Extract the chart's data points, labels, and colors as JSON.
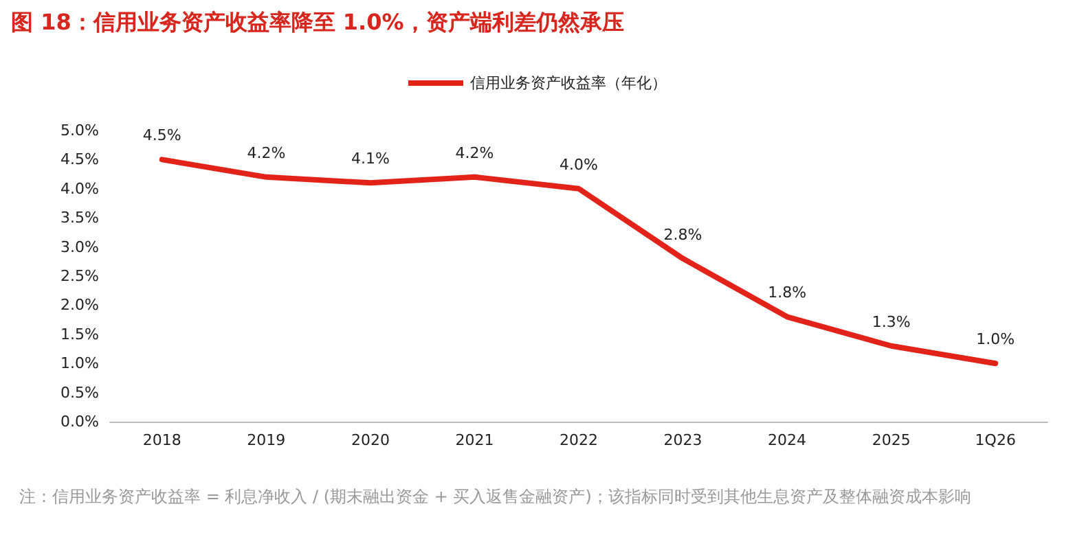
{
  "chart_data": {
    "type": "line",
    "title": "图 18：信用业务资产收益率降至 1.0%，资产端利差仍然承压",
    "categories": [
      "2018",
      "2019",
      "2020",
      "2021",
      "2022",
      "2023",
      "2024",
      "2025",
      "1Q26"
    ],
    "series": [
      {
        "name": "信用业务资产收益率（年化）",
        "color": "#e2231a",
        "values": [
          4.5,
          4.2,
          4.1,
          4.2,
          4.0,
          2.8,
          1.8,
          1.3,
          1.0
        ],
        "value_labels": [
          "4.5%",
          "4.2%",
          "4.1%",
          "4.2%",
          "4.0%",
          "2.8%",
          "1.8%",
          "1.3%",
          "1.0%"
        ]
      }
    ],
    "ylim": [
      0,
      5
    ],
    "yticks": [
      {
        "value": 0,
        "label": "0.0%"
      },
      {
        "value": 0.5,
        "label": "0.5%"
      },
      {
        "value": 1,
        "label": "1.0%"
      },
      {
        "value": 1.5,
        "label": "1.5%"
      },
      {
        "value": 2,
        "label": "2.0%"
      },
      {
        "value": 2.5,
        "label": "2.5%"
      },
      {
        "value": 3,
        "label": "3.0%"
      },
      {
        "value": 3.5,
        "label": "3.5%"
      },
      {
        "value": 4,
        "label": "4.0%"
      },
      {
        "value": 4.5,
        "label": "4.5%"
      },
      {
        "value": 5,
        "label": "5.0%"
      }
    ],
    "legend": "top",
    "grid": false,
    "marker": "none",
    "line_style": "solid",
    "annotations": [
      "注：信用业务资产收益率 = 利息净收入 / (期末融出资金 + 买入返售金融资产)；该指标同时受到其他生息资产及整体融资成本影响"
    ]
  }
}
